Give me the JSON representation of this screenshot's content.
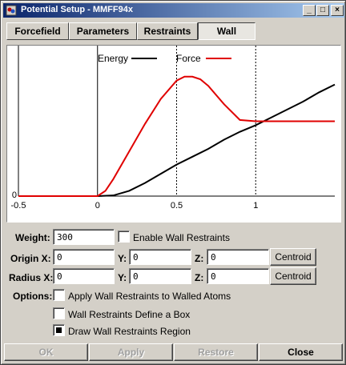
{
  "window": {
    "title": "Potential Setup - MMFF94x"
  },
  "titlebar": {
    "minimize": "_",
    "maximize": "□",
    "close": "×"
  },
  "tabs": [
    {
      "label": "Forcefield"
    },
    {
      "label": "Parameters"
    },
    {
      "label": "Restraints"
    },
    {
      "label": "Wall",
      "active": true
    }
  ],
  "chart_data": {
    "type": "line",
    "legend": {
      "placement": "top-center",
      "entries": [
        "Energy",
        "Force"
      ]
    },
    "xlim": [
      -0.5,
      1.5
    ],
    "ylim": [
      0,
      1.0
    ],
    "x_ticks": [
      -0.5,
      0,
      0.5,
      1
    ],
    "x_tick_labels": [
      "-0.5",
      "0",
      "0.5",
      "1"
    ],
    "y_ticks": [
      0
    ],
    "y_tick_labels": [
      "0"
    ],
    "vlines": [
      0,
      0.5,
      1
    ],
    "series": [
      {
        "name": "Energy",
        "color": "#000000",
        "x": [
          -0.5,
          0,
          0.1,
          0.2,
          0.3,
          0.4,
          0.5,
          0.6,
          0.7,
          0.8,
          0.9,
          1.0,
          1.1,
          1.2,
          1.3,
          1.4,
          1.5
        ],
        "y": [
          0,
          0,
          0.005,
          0.04,
          0.1,
          0.17,
          0.24,
          0.3,
          0.36,
          0.43,
          0.49,
          0.54,
          0.6,
          0.66,
          0.72,
          0.79,
          0.85
        ]
      },
      {
        "name": "Force",
        "color": "#e00000",
        "x": [
          -0.5,
          0,
          0.05,
          0.1,
          0.2,
          0.3,
          0.4,
          0.5,
          0.55,
          0.6,
          0.65,
          0.7,
          0.8,
          0.9,
          1.0,
          1.1,
          1.2,
          1.3,
          1.4,
          1.5
        ],
        "y": [
          0,
          0,
          0.04,
          0.13,
          0.34,
          0.55,
          0.74,
          0.88,
          0.91,
          0.91,
          0.89,
          0.84,
          0.7,
          0.58,
          0.57,
          0.57,
          0.57,
          0.57,
          0.57,
          0.57
        ]
      }
    ]
  },
  "form": {
    "weight_label": "Weight:",
    "weight_value": "300",
    "enable_label": "Enable Wall Restraints",
    "origin_label": "Origin X:",
    "origin_x": "0",
    "origin_y_label": "Y:",
    "origin_y": "0",
    "origin_z_label": "Z:",
    "origin_z": "0",
    "radius_label": "Radius X:",
    "radius_x": "0",
    "radius_y_label": "Y:",
    "radius_y": "0",
    "radius_z_label": "Z:",
    "radius_z": "0",
    "centroid_label": "Centroid",
    "options_label": "Options:",
    "opt_apply": "Apply Wall Restraints to Walled Atoms",
    "opt_box": "Wall Restraints Define a Box",
    "opt_draw": "Draw Wall Restraints Region"
  },
  "buttons": {
    "ok": "OK",
    "apply": "Apply",
    "restore": "Restore",
    "close": "Close"
  }
}
